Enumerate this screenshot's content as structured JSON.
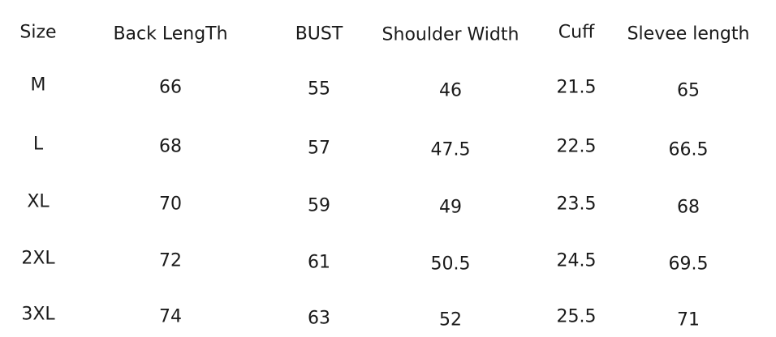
{
  "table": {
    "columns": [
      "Size",
      "Back LengTh",
      "BUST",
      "Shoulder Width",
      "Cuff",
      "Slevee length"
    ],
    "rows": [
      [
        "M",
        "66",
        "55",
        "46",
        "21.5",
        "65"
      ],
      [
        "L",
        "68",
        "57",
        "47.5",
        "22.5",
        "66.5"
      ],
      [
        "XL",
        "70",
        "59",
        "49",
        "23.5",
        "68"
      ],
      [
        "2XL",
        "72",
        "61",
        "50.5",
        "24.5",
        "69.5"
      ],
      [
        "3XL",
        "74",
        "63",
        "52",
        "25.5",
        "71"
      ]
    ]
  }
}
